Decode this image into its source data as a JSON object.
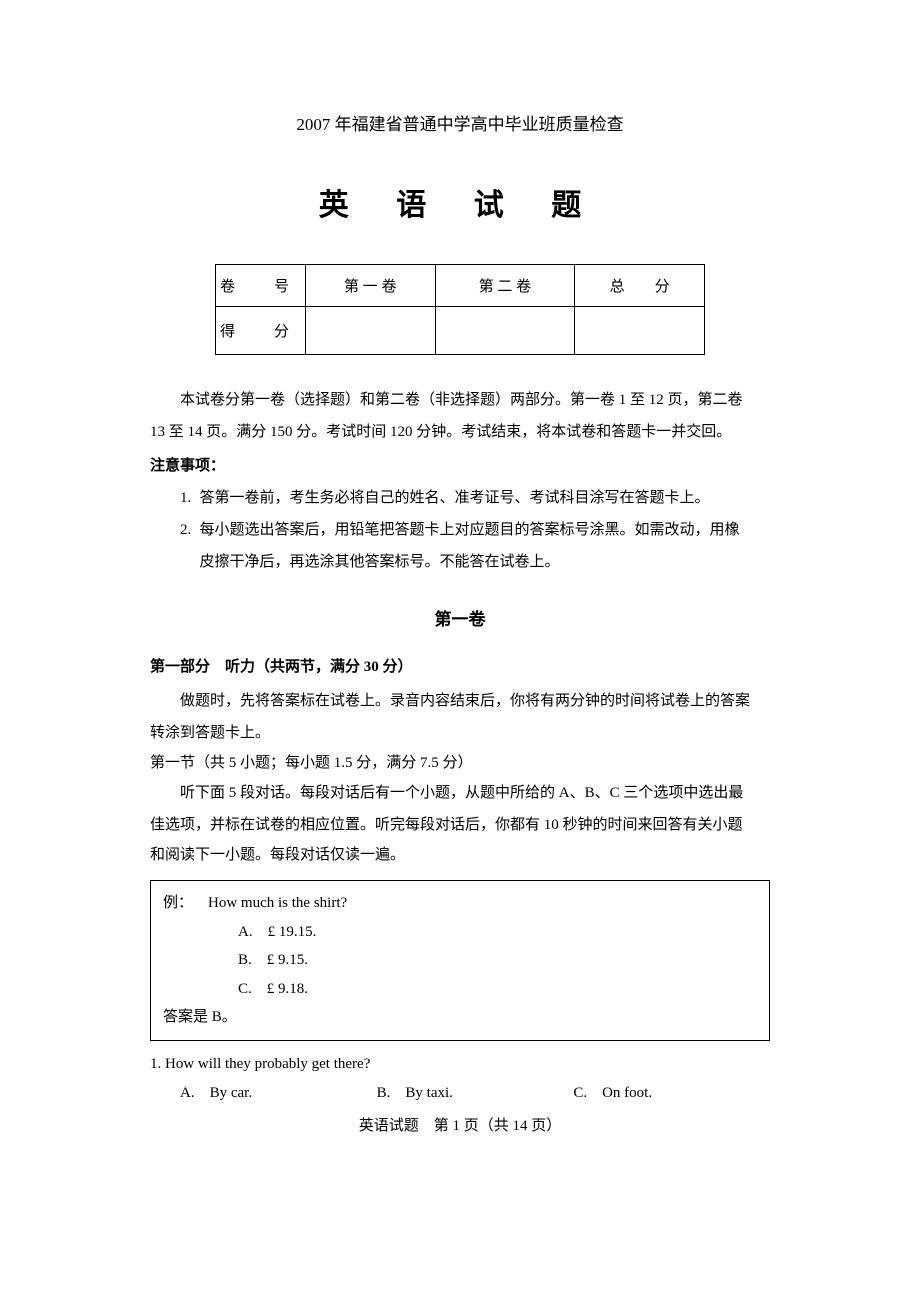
{
  "header_line": "2007 年福建省普通中学高中毕业班质量检查",
  "title": "英 语 试 题",
  "score_table": {
    "r1c1": "卷　号",
    "r1c2": "第 一 卷",
    "r1c3": "第 二 卷",
    "r1c4": "总分",
    "r2c1": "得　分"
  },
  "intro": {
    "p1": "本试卷分第一卷（选择题）和第二卷（非选择题）两部分。第一卷 1 至 12 页，第二卷",
    "p1b": "13 至 14 页。满分 150 分。考试时间 120 分钟。考试结束，将本试卷和答题卡一并交回。",
    "notice_title": "注意事项：",
    "item1": "答第一卷前，考生务必将自己的姓名、准考证号、考试科目涂写在答题卡上。",
    "item2a": "每小题选出答案后，用铅笔把答题卡上对应题目的答案标号涂黑。如需改动，用橡",
    "item2b": "皮擦干净后，再选涂其他答案标号。不能答在试卷上。"
  },
  "section1_title": "第一卷",
  "part1": {
    "header": "第一部分　听力（共两节，满分 30 分）",
    "p1": "做题时，先将答案标在试卷上。录音内容结束后，你将有两分钟的时间将试卷上的答案",
    "p1b": "转涂到答题卡上。",
    "sub1": "第一节（共 5 小题；每小题 1.5 分，满分 7.5 分）",
    "p2": "听下面 5 段对话。每段对话后有一个小题，从题中所给的 A、B、C 三个选项中选出最",
    "p2b": "佳选项，并标在试卷的相应位置。听完每段对话后，你都有 10 秒钟的时间来回答有关小题",
    "p2c": "和阅读下一小题。每段对话仅读一遍。"
  },
  "example": {
    "label": "例：",
    "question": "How much is the shirt?",
    "optA": "A.　£ 19.15.",
    "optB": "B.　£ 9.15.",
    "optC": "C.　£ 9.18.",
    "answer": "答案是 B。"
  },
  "q1": {
    "text": "1. How will they probably get there?",
    "optA": "A.　By car.",
    "optB": "B.　By taxi.",
    "optC": "C.　On foot."
  },
  "footer": "英语试题　第 1 页（共 14 页）"
}
